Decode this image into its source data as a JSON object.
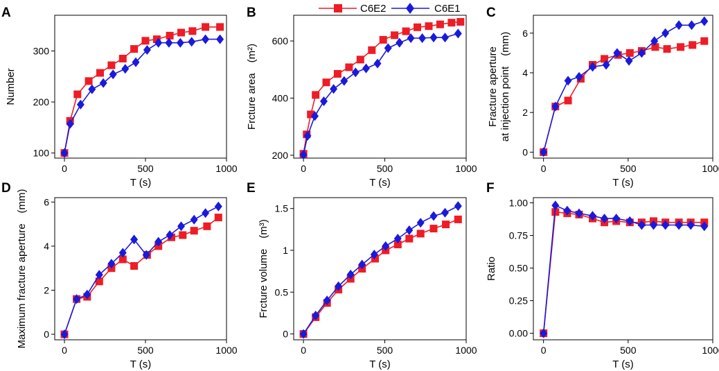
{
  "legend": {
    "c6e2": "C6E2",
    "c6e1": "C6E1"
  },
  "colors": {
    "c6e2": "#ee1c25",
    "c6e1": "#1a1adb"
  },
  "chart_data": [
    {
      "panel": "A",
      "type": "line",
      "xlabel": "T (s)",
      "ylabel": "Number",
      "xlim": [
        -60,
        1000
      ],
      "ylim": [
        90,
        370
      ],
      "xticks": [
        0,
        500,
        1000
      ],
      "yticks": [
        100,
        200,
        300
      ],
      "series": [
        {
          "name": "C6E2",
          "marker": "square",
          "x": [
            0,
            35,
            80,
            150,
            220,
            290,
            360,
            430,
            500,
            570,
            650,
            720,
            790,
            870,
            960
          ],
          "y": [
            100,
            163,
            215,
            241,
            257,
            272,
            285,
            304,
            320,
            323,
            330,
            336,
            339,
            347,
            347
          ]
        },
        {
          "name": "C6E1",
          "marker": "diamond",
          "x": [
            0,
            35,
            100,
            170,
            240,
            300,
            375,
            440,
            510,
            580,
            645,
            715,
            785,
            870,
            960
          ],
          "y": [
            100,
            157,
            195,
            225,
            237,
            254,
            265,
            278,
            302,
            316,
            316,
            316,
            318,
            323,
            323
          ]
        }
      ]
    },
    {
      "panel": "B",
      "type": "line",
      "xlabel": "T (s)",
      "ylabel": "Frcture area　(m²)",
      "xlim": [
        -60,
        1000
      ],
      "ylim": [
        190,
        690
      ],
      "xticks": [
        0,
        500,
        1000
      ],
      "yticks": [
        200,
        400,
        600
      ],
      "series": [
        {
          "name": "C6E2",
          "marker": "square",
          "x": [
            0,
            20,
            45,
            75,
            140,
            210,
            280,
            350,
            420,
            490,
            560,
            630,
            700,
            770,
            840,
            910,
            965
          ],
          "y": [
            205,
            273,
            343,
            411,
            455,
            485,
            508,
            535,
            568,
            604,
            620,
            634,
            648,
            652,
            658,
            664,
            667
          ]
        },
        {
          "name": "C6E1",
          "marker": "diamond",
          "x": [
            0,
            25,
            70,
            125,
            185,
            250,
            320,
            385,
            455,
            520,
            590,
            660,
            730,
            800,
            870,
            950
          ],
          "y": [
            202,
            268,
            337,
            389,
            432,
            460,
            490,
            504,
            521,
            575,
            594,
            610,
            610,
            612,
            612,
            626
          ]
        }
      ]
    },
    {
      "panel": "C",
      "type": "line",
      "xlabel": "T (s)",
      "ylabel": "Fracture aperture at injection point　(mm)",
      "xlim": [
        -60,
        1000
      ],
      "ylim": [
        -0.3,
        6.9
      ],
      "xticks": [
        0,
        500,
        1000
      ],
      "yticks": [
        0,
        2,
        4,
        6
      ],
      "series": [
        {
          "name": "C6E2",
          "marker": "square",
          "x": [
            0,
            70,
            145,
            220,
            290,
            360,
            440,
            510,
            580,
            660,
            730,
            810,
            880,
            950
          ],
          "y": [
            0.0,
            2.3,
            2.6,
            3.7,
            4.4,
            4.7,
            4.9,
            5.0,
            5.1,
            5.3,
            5.2,
            5.3,
            5.4,
            5.6
          ]
        },
        {
          "name": "C6E1",
          "marker": "diamond",
          "x": [
            0,
            70,
            145,
            210,
            290,
            370,
            435,
            505,
            580,
            655,
            720,
            800,
            875,
            950
          ],
          "y": [
            0.0,
            2.3,
            3.6,
            3.8,
            4.3,
            4.4,
            5.0,
            4.6,
            5.0,
            5.6,
            6.0,
            6.4,
            6.4,
            6.6
          ]
        }
      ]
    },
    {
      "panel": "D",
      "type": "line",
      "xlabel": "T (s)",
      "ylabel": "Maximum fracture aperture　(mm)",
      "xlim": [
        -60,
        1000
      ],
      "ylim": [
        -0.25,
        6.2
      ],
      "xticks": [
        0,
        500,
        1000
      ],
      "yticks": [
        0,
        2,
        4,
        6
      ],
      "series": [
        {
          "name": "C6E2",
          "marker": "square",
          "x": [
            0,
            75,
            140,
            215,
            290,
            360,
            430,
            510,
            580,
            660,
            730,
            800,
            880,
            950
          ],
          "y": [
            0.0,
            1.6,
            1.7,
            2.4,
            3.0,
            3.4,
            3.1,
            3.6,
            4.0,
            4.4,
            4.5,
            4.7,
            4.9,
            5.3
          ]
        },
        {
          "name": "C6E1",
          "marker": "diamond",
          "x": [
            0,
            75,
            140,
            215,
            290,
            360,
            430,
            505,
            580,
            650,
            720,
            800,
            870,
            950
          ],
          "y": [
            0.0,
            1.6,
            1.8,
            2.7,
            3.2,
            3.7,
            4.3,
            3.6,
            4.2,
            4.5,
            4.9,
            5.2,
            5.5,
            5.8
          ]
        }
      ]
    },
    {
      "panel": "E",
      "type": "line",
      "xlabel": "T (s)",
      "ylabel": "Frcture volume　(m³)",
      "xlim": [
        -60,
        1000
      ],
      "ylim": [
        -0.07,
        1.63
      ],
      "xticks": [
        0,
        500,
        1000
      ],
      "yticks": [
        0.0,
        0.5,
        1.0,
        1.5
      ],
      "series": [
        {
          "name": "C6E2",
          "marker": "square",
          "x": [
            0,
            75,
            145,
            215,
            290,
            360,
            440,
            505,
            580,
            650,
            720,
            800,
            875,
            950
          ],
          "y": [
            0.0,
            0.2,
            0.37,
            0.53,
            0.66,
            0.78,
            0.9,
            1.0,
            1.07,
            1.14,
            1.2,
            1.26,
            1.31,
            1.37
          ]
        },
        {
          "name": "C6E1",
          "marker": "diamond",
          "x": [
            0,
            75,
            145,
            215,
            290,
            360,
            435,
            505,
            580,
            650,
            720,
            800,
            870,
            950
          ],
          "y": [
            0.0,
            0.22,
            0.4,
            0.57,
            0.71,
            0.83,
            0.95,
            1.05,
            1.14,
            1.24,
            1.33,
            1.41,
            1.45,
            1.53
          ]
        }
      ]
    },
    {
      "panel": "F",
      "type": "line",
      "xlabel": "T (s)",
      "ylabel": "Ratio",
      "xlim": [
        -60,
        1000
      ],
      "ylim": [
        -0.05,
        1.04
      ],
      "xticks": [
        0,
        500,
        1000
      ],
      "yticks": [
        0.0,
        0.25,
        0.5,
        0.75,
        1.0
      ],
      "ytick_labels": [
        "0.00",
        "0.25",
        "0.50",
        "0.75",
        "1.00"
      ],
      "series": [
        {
          "name": "C6E2",
          "marker": "square",
          "x": [
            0,
            70,
            140,
            210,
            290,
            360,
            430,
            510,
            580,
            650,
            720,
            800,
            870,
            950
          ],
          "y": [
            0.0,
            0.93,
            0.92,
            0.91,
            0.88,
            0.85,
            0.86,
            0.85,
            0.85,
            0.86,
            0.85,
            0.85,
            0.85,
            0.85
          ]
        },
        {
          "name": "C6E1",
          "marker": "diamond",
          "x": [
            0,
            70,
            140,
            210,
            290,
            360,
            430,
            510,
            580,
            650,
            720,
            800,
            870,
            950
          ],
          "y": [
            0.0,
            0.98,
            0.94,
            0.92,
            0.9,
            0.88,
            0.88,
            0.86,
            0.83,
            0.83,
            0.83,
            0.83,
            0.83,
            0.82
          ]
        }
      ]
    }
  ]
}
